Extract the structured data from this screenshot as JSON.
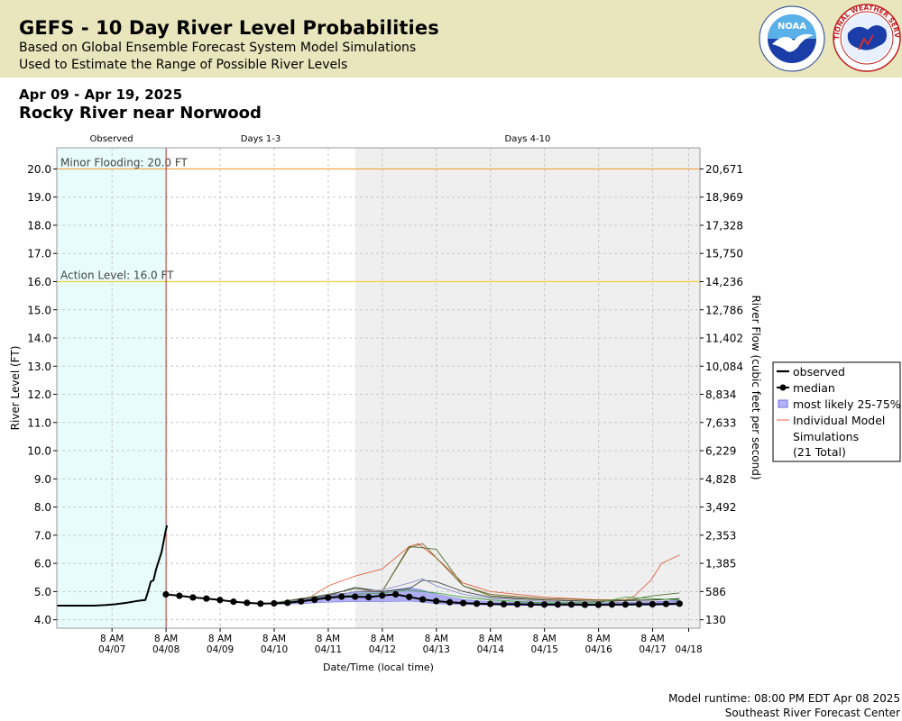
{
  "header": {
    "title": "GEFS - 10 Day River Level Probabilities",
    "subtitle_1": "Based on Global Ensemble Forecast System Model Simulations",
    "subtitle_2": "Used to Estimate the Range of Possible River Levels",
    "logo_left": "NOAA",
    "logo_right": "NATIONAL WEATHER SERVICE",
    "band_color": "#e9e6bd"
  },
  "date_range": "Apr 09 - Apr 19, 2025",
  "location": "Rocky River near Norwood",
  "footer": {
    "model_runtime": "Model runtime: 08:00 PM EDT Apr 08 2025",
    "center": "Southeast River Forecast Center"
  },
  "legend": {
    "observed": "observed",
    "median": "median",
    "likely": "most likely 25-75%",
    "individual_1": "Individual Model",
    "individual_2": "Simulations",
    "individual_3": "(21 Total)"
  },
  "chart_data": {
    "type": "line",
    "title": "Rocky River near Norwood",
    "xlabel": "Date/Time (local time)",
    "ylabel": "River Level (FT)",
    "ylabel_right": "River Flow (cubic feet per second)",
    "ylim": [
      3.7,
      20.75
    ],
    "y_ticks": [
      4.0,
      5.0,
      6.0,
      7.0,
      8.0,
      9.0,
      10.0,
      11.0,
      12.0,
      13.0,
      14.0,
      15.0,
      16.0,
      17.0,
      18.0,
      19.0,
      20.0
    ],
    "y_tick_labels": [
      "4.0",
      "5.0",
      "6.0",
      "7.0",
      "8.0",
      "9.0",
      "10.0",
      "11.0",
      "12.0",
      "13.0",
      "14.0",
      "15.0",
      "16.0",
      "17.0",
      "18.0",
      "19.0",
      "20.0"
    ],
    "right_tick_labels": [
      "130",
      "586",
      "1,385",
      "2,353",
      "3,492",
      "4,828",
      "6,229",
      "7,633",
      "8,834",
      "10,084",
      "11,402",
      "12,786",
      "14,236",
      "15,750",
      "17,328",
      "18,969",
      "20,671"
    ],
    "xlim_days": [
      6.3125,
      18.2083
    ],
    "x_ticks": [
      {
        "day": 7.3333,
        "time": "8 AM",
        "date": "04/07"
      },
      {
        "day": 8.3333,
        "time": "8 AM",
        "date": "04/08"
      },
      {
        "day": 9.3333,
        "time": "8 AM",
        "date": "04/09"
      },
      {
        "day": 10.3333,
        "time": "8 AM",
        "date": "04/10"
      },
      {
        "day": 11.3333,
        "time": "8 AM",
        "date": "04/11"
      },
      {
        "day": 12.3333,
        "time": "8 AM",
        "date": "04/12"
      },
      {
        "day": 13.3333,
        "time": "8 AM",
        "date": "04/13"
      },
      {
        "day": 14.3333,
        "time": "8 AM",
        "date": "04/14"
      },
      {
        "day": 15.3333,
        "time": "8 AM",
        "date": "04/15"
      },
      {
        "day": 16.3333,
        "time": "8 AM",
        "date": "04/16"
      },
      {
        "day": 17.3333,
        "time": "8 AM",
        "date": "04/17"
      },
      {
        "day": 18.0,
        "time": "",
        "date": "04/18"
      }
    ],
    "x_date_labels": [
      "04/07",
      "04/08",
      "04/09",
      "04/10",
      "04/11",
      "04/12",
      "04/13",
      "04/14",
      "04/15",
      "04/16",
      "04/17",
      "04/18"
    ],
    "regions": [
      {
        "label": "Observed",
        "start": 6.3125,
        "end": 8.3333,
        "color": "#e8fcfc"
      },
      {
        "label": "Days 1-3",
        "start": 8.3333,
        "end": 11.8333,
        "color": "#ffffff"
      },
      {
        "label": "Days 4-10",
        "start": 11.8333,
        "end": 18.2083,
        "color": "#efefef"
      }
    ],
    "forecast_start": 8.3333,
    "thresholds": [
      {
        "label": "Minor Flooding: 20.0 FT",
        "value": 20.0,
        "color": "#f0a040"
      },
      {
        "label": "Action Level: 16.0 FT",
        "value": 16.0,
        "color": "#f0d040"
      }
    ],
    "observed": {
      "x": [
        6.3125,
        6.5,
        6.8,
        7.0,
        7.2,
        7.4,
        7.6,
        7.75,
        7.85,
        7.95,
        8.0,
        8.05,
        8.1,
        8.15,
        8.2,
        8.25,
        8.3,
        8.32,
        8.35
      ],
      "y": [
        4.5,
        4.5,
        4.5,
        4.5,
        4.52,
        4.55,
        4.6,
        4.65,
        4.68,
        4.7,
        5.0,
        5.35,
        5.4,
        5.8,
        6.1,
        6.4,
        6.9,
        7.1,
        7.35
      ]
    },
    "median": {
      "x": [
        8.33,
        8.58,
        8.83,
        9.08,
        9.33,
        9.58,
        9.83,
        10.08,
        10.33,
        10.58,
        10.83,
        11.08,
        11.33,
        11.58,
        11.83,
        12.08,
        12.33,
        12.58,
        12.83,
        13.08,
        13.33,
        13.58,
        13.83,
        14.08,
        14.33,
        14.58,
        14.83,
        15.08,
        15.33,
        15.58,
        15.83,
        16.08,
        16.33,
        16.58,
        16.83,
        17.08,
        17.33,
        17.58,
        17.83
      ],
      "y": [
        4.9,
        4.85,
        4.79,
        4.75,
        4.7,
        4.64,
        4.6,
        4.57,
        4.58,
        4.6,
        4.65,
        4.71,
        4.78,
        4.82,
        4.82,
        4.8,
        4.86,
        4.9,
        4.81,
        4.72,
        4.66,
        4.62,
        4.59,
        4.57,
        4.56,
        4.55,
        4.55,
        4.54,
        4.54,
        4.54,
        4.54,
        4.53,
        4.53,
        4.54,
        4.54,
        4.55,
        4.55,
        4.56,
        4.57
      ]
    },
    "likely_band": {
      "x": [
        10.33,
        10.83,
        11.33,
        11.83,
        12.33,
        12.83,
        13.08,
        13.33,
        13.83,
        14.33,
        14.83,
        15.33,
        15.83,
        16.33,
        16.83,
        17.33,
        17.83
      ],
      "low": [
        4.55,
        4.57,
        4.62,
        4.64,
        4.64,
        4.66,
        4.62,
        4.57,
        4.54,
        4.52,
        4.51,
        4.5,
        4.5,
        4.5,
        4.51,
        4.51,
        4.52
      ],
      "high": [
        4.62,
        4.72,
        4.88,
        4.98,
        5.0,
        5.14,
        5.05,
        4.9,
        4.72,
        4.64,
        4.61,
        4.6,
        4.6,
        4.6,
        4.62,
        4.64,
        4.68
      ]
    },
    "simulations": [
      {
        "x": [
          10.33,
          11.0,
          11.33,
          11.83,
          12.33,
          12.83,
          13.0,
          13.33,
          13.83,
          14.33,
          15.33,
          16.33,
          16.83,
          17.0,
          17.3,
          17.5,
          17.83
        ],
        "y": [
          4.6,
          4.8,
          5.2,
          5.55,
          5.8,
          6.6,
          6.7,
          6.2,
          5.3,
          5.0,
          4.8,
          4.7,
          4.7,
          4.85,
          5.4,
          6.0,
          6.3
        ],
        "color": "#e06040"
      },
      {
        "x": [
          10.33,
          11.33,
          11.83,
          12.33,
          12.83,
          13.08,
          13.33,
          13.83,
          14.33,
          15.33,
          16.33,
          17.33,
          17.83
        ],
        "y": [
          4.6,
          4.8,
          5.0,
          5.0,
          6.55,
          6.7,
          6.2,
          5.2,
          4.9,
          4.75,
          4.7,
          4.7,
          4.75
        ],
        "color": "#806020"
      },
      {
        "x": [
          10.33,
          11.33,
          11.83,
          12.33,
          12.83,
          13.33,
          13.83,
          14.33,
          15.33,
          16.33,
          16.83,
          17.33,
          17.83
        ],
        "y": [
          4.6,
          4.9,
          5.1,
          5.0,
          6.6,
          6.5,
          5.2,
          4.85,
          4.7,
          4.65,
          4.68,
          4.85,
          4.95
        ],
        "color": "#507030"
      },
      {
        "x": [
          10.33,
          11.33,
          11.83,
          12.33,
          12.83,
          13.08,
          13.33,
          13.83,
          14.33,
          15.33,
          16.33,
          17.33,
          17.83
        ],
        "y": [
          4.6,
          4.85,
          5.15,
          5.0,
          5.1,
          5.4,
          5.35,
          5.0,
          4.8,
          4.7,
          4.65,
          4.7,
          4.75
        ],
        "color": "#404040"
      },
      {
        "x": [
          10.33,
          11.33,
          11.83,
          12.33,
          12.83,
          13.08,
          13.33,
          13.83,
          14.33,
          15.33,
          16.33,
          17.33,
          17.83
        ],
        "y": [
          4.6,
          4.8,
          5.0,
          5.05,
          5.3,
          5.45,
          5.2,
          4.9,
          4.75,
          4.65,
          4.6,
          4.62,
          4.65
        ],
        "color": "#9090d0"
      },
      {
        "x": [
          10.33,
          11.33,
          11.83,
          12.33,
          12.83,
          13.33,
          13.83,
          14.33,
          15.33,
          16.33,
          16.83,
          17.33,
          17.83
        ],
        "y": [
          4.6,
          4.75,
          4.9,
          4.95,
          5.05,
          4.95,
          4.8,
          4.7,
          4.6,
          4.6,
          4.8,
          4.75,
          4.7
        ],
        "color": "#40a040"
      }
    ]
  }
}
